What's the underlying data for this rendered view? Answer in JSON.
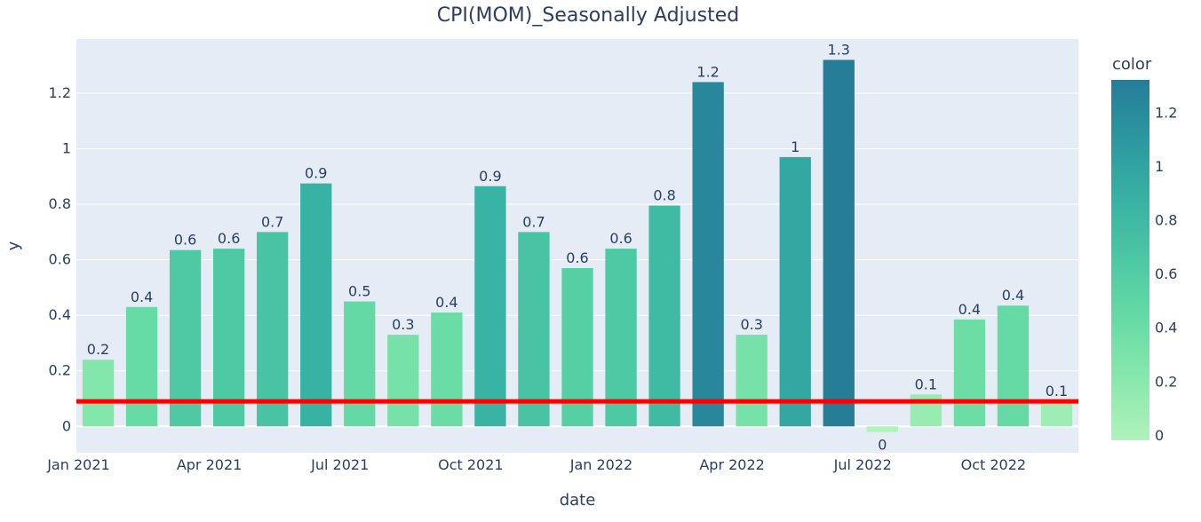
{
  "chart_data": {
    "type": "bar",
    "title": "CPI(MOM)_Seasonally Adjusted",
    "xlabel": "date",
    "ylabel": "y",
    "x_ticks": [
      "Jan 2021",
      "Apr 2021",
      "Jul 2021",
      "Oct 2021",
      "Jan 2022",
      "Apr 2022",
      "Jul 2022",
      "Oct 2022"
    ],
    "y_ticks": [
      "0",
      "0.2",
      "0.4",
      "0.6",
      "0.8",
      "1",
      "1.2"
    ],
    "ylim": [
      -0.095,
      1.395
    ],
    "categories": [
      "2021-01",
      "2021-02",
      "2021-03",
      "2021-04",
      "2021-05",
      "2021-06",
      "2021-07",
      "2021-08",
      "2021-09",
      "2021-10",
      "2021-11",
      "2021-12",
      "2022-01",
      "2022-02",
      "2022-03",
      "2022-04",
      "2022-05",
      "2022-06",
      "2022-07",
      "2022-08",
      "2022-09",
      "2022-10",
      "2022-11"
    ],
    "values": [
      0.24,
      0.43,
      0.635,
      0.64,
      0.7,
      0.875,
      0.45,
      0.33,
      0.41,
      0.865,
      0.7,
      0.57,
      0.64,
      0.795,
      1.24,
      0.33,
      0.97,
      1.32,
      -0.02,
      0.115,
      0.385,
      0.435,
      0.09
    ],
    "labels": [
      "0.2",
      "0.4",
      "0.6",
      "0.6",
      "0.7",
      "0.9",
      "0.5",
      "0.3",
      "0.4",
      "0.9",
      "0.7",
      "0.6",
      "0.6",
      "0.8",
      "1.2",
      "0.3",
      "1",
      "1.3",
      "0",
      "0.1",
      "0.4",
      "0.4",
      "0.1"
    ],
    "reference_line": {
      "y": 0.09,
      "color": "#ff0000"
    },
    "grid": true,
    "colorbar": {
      "title": "color",
      "ticks": [
        "0",
        "0.2",
        "0.4",
        "0.6",
        "0.8",
        "1",
        "1.2"
      ],
      "range": [
        -0.02,
        1.32
      ],
      "colorscale": [
        "#b0f2bc",
        "#89e8ac",
        "#67dba5",
        "#4cc8a3",
        "#38b2a3",
        "#2c98a0",
        "#257d98"
      ]
    },
    "colors": {
      "plot_bg": "#e5ecf6",
      "grid": "#ffffff",
      "text": "#2a3f5f"
    }
  }
}
